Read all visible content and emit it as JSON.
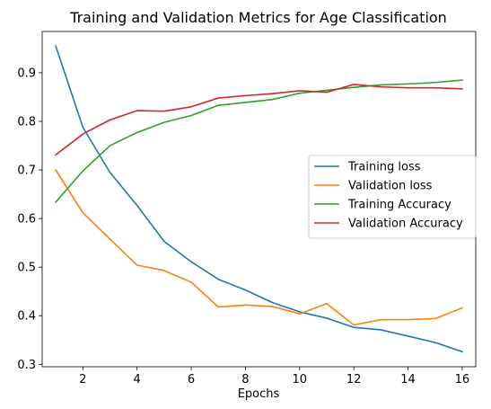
{
  "chart_data": {
    "type": "line",
    "title": "Training and Validation Metrics for Age Classification",
    "xlabel": "Epochs",
    "ylabel": "",
    "xlim": [
      0.5,
      16.5
    ],
    "ylim": [
      0.295,
      0.985
    ],
    "xticks": [
      2,
      4,
      6,
      8,
      10,
      12,
      14,
      16
    ],
    "yticks": [
      0.3,
      0.4,
      0.5,
      0.6,
      0.7,
      0.8,
      0.9
    ],
    "grid": false,
    "legend_position": "center-right",
    "x": [
      1,
      2,
      3,
      4,
      5,
      6,
      7,
      8,
      9,
      10,
      11,
      12,
      13,
      14,
      15,
      16
    ],
    "series": [
      {
        "name": "Training loss",
        "color": "#1f77b4",
        "values": [
          0.955,
          0.788,
          0.695,
          0.627,
          0.553,
          0.511,
          0.475,
          0.453,
          0.427,
          0.408,
          0.395,
          0.376,
          0.371,
          0.358,
          0.345,
          0.326
        ]
      },
      {
        "name": "Validation loss",
        "color": "#ff7f0e",
        "values": [
          0.7,
          0.612,
          0.558,
          0.504,
          0.493,
          0.469,
          0.418,
          0.422,
          0.419,
          0.404,
          0.425,
          0.381,
          0.392,
          0.392,
          0.394,
          0.416
        ]
      },
      {
        "name": "Training Accuracy",
        "color": "#2ca02c",
        "values": [
          0.634,
          0.698,
          0.75,
          0.777,
          0.798,
          0.812,
          0.833,
          0.839,
          0.845,
          0.858,
          0.864,
          0.87,
          0.875,
          0.877,
          0.88,
          0.885
        ]
      },
      {
        "name": "Validation Accuracy",
        "color": "#d62728",
        "values": [
          0.731,
          0.774,
          0.803,
          0.822,
          0.821,
          0.83,
          0.848,
          0.853,
          0.857,
          0.863,
          0.86,
          0.876,
          0.871,
          0.869,
          0.869,
          0.867
        ]
      }
    ]
  }
}
